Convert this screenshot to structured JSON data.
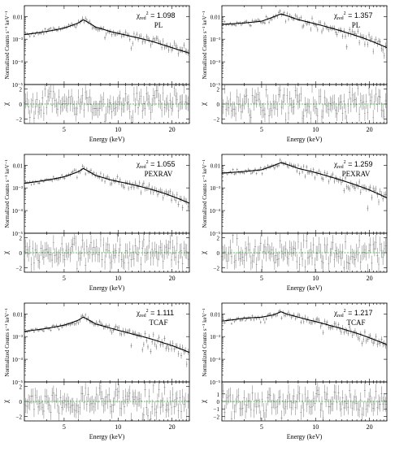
{
  "chart_data": [
    {
      "type": "scatter",
      "annotation": {
        "chi_label": "χ",
        "chi_sub": "red",
        "chi_sup": "2",
        "chi_value": "= 1.098",
        "model": "PL"
      },
      "top": {
        "ylabel": "Normalized Counts s⁻¹ keV⁻¹",
        "ylim": [
          1e-05,
          0.03
        ],
        "yscale": "log",
        "yticks": [
          "0.01",
          "10⁻³",
          "10⁻⁴",
          "10⁻⁵"
        ],
        "ytick_values": [
          0.01,
          0.001,
          0.0001,
          1e-05
        ]
      },
      "bottom": {
        "ylabel": "χ",
        "ylim": [
          -2.6,
          2.6
        ],
        "yticks": [
          "2",
          "0",
          "−2"
        ],
        "ytick_values": [
          2,
          0,
          -2
        ]
      },
      "x": {
        "label": "Energy (keV)",
        "range": [
          3,
          25
        ],
        "ticks": [
          "5",
          "10",
          "20"
        ],
        "tick_values": [
          5,
          10,
          20
        ]
      },
      "model_curve": {
        "x": [
          3,
          4,
          5,
          6,
          6.4,
          6.8,
          7.5,
          9,
          10,
          12,
          15,
          18,
          20,
          22,
          25
        ],
        "y": [
          0.0016,
          0.0022,
          0.0031,
          0.0052,
          0.0072,
          0.0055,
          0.0034,
          0.0022,
          0.0018,
          0.0013,
          0.00085,
          0.00055,
          0.00042,
          0.00033,
          0.00024
        ]
      },
      "residual_scatter": 1.0
    },
    {
      "type": "scatter",
      "annotation": {
        "chi_label": "χ",
        "chi_sub": "red",
        "chi_sup": "2",
        "chi_value": "= 1.357",
        "model": "PL"
      },
      "top": {
        "ylabel": "Normalized Counts s⁻¹ keV⁻¹",
        "ylim": [
          1e-05,
          0.03
        ],
        "yscale": "log",
        "yticks": [
          "0.01",
          "10⁻³",
          "10⁻⁴",
          "10⁻⁵"
        ],
        "ytick_values": [
          0.01,
          0.001,
          0.0001,
          1e-05
        ]
      },
      "bottom": {
        "ylabel": "χ",
        "ylim": [
          -2.6,
          2.6
        ],
        "yticks": [
          "2",
          "0",
          "−2"
        ],
        "ytick_values": [
          2,
          0,
          -2
        ]
      },
      "x": {
        "label": "Energy (keV)",
        "range": [
          3,
          25
        ],
        "ticks": [
          "5",
          "10",
          "20"
        ],
        "tick_values": [
          5,
          10,
          20
        ]
      },
      "model_curve": {
        "x": [
          3,
          4,
          5,
          5.8,
          6.4,
          7,
          8,
          9,
          10,
          12,
          15,
          18,
          20,
          22,
          25
        ],
        "y": [
          0.0045,
          0.0052,
          0.0062,
          0.0095,
          0.013,
          0.0105,
          0.0072,
          0.0058,
          0.0047,
          0.0032,
          0.0019,
          0.0012,
          0.00088,
          0.00065,
          0.00042
        ]
      },
      "residual_scatter": 1.2
    },
    {
      "type": "scatter",
      "annotation": {
        "chi_label": "χ",
        "chi_sub": "red",
        "chi_sup": "2",
        "chi_value": "= 1.055",
        "model": "PEXRAV"
      },
      "top": {
        "ylabel": "Normalized Counts s⁻¹ keV⁻¹",
        "ylim": [
          1e-05,
          0.03
        ],
        "yscale": "log",
        "yticks": [
          "0.01",
          "10⁻³",
          "10⁻⁴",
          "10⁻⁵"
        ],
        "ytick_values": [
          0.01,
          0.001,
          0.0001,
          1e-05
        ]
      },
      "bottom": {
        "ylabel": "χ",
        "ylim": [
          -2.6,
          2.6
        ],
        "yticks": [
          "2",
          "0",
          "−2"
        ],
        "ytick_values": [
          2,
          0,
          -2
        ]
      },
      "x": {
        "label": "Energy (keV)",
        "range": [
          3,
          25
        ],
        "ticks": [
          "5",
          "10",
          "20"
        ],
        "tick_values": [
          5,
          10,
          20
        ]
      },
      "model_curve": {
        "x": [
          3,
          4,
          5,
          6,
          6.4,
          6.8,
          7.5,
          9,
          10,
          12,
          15,
          18,
          20,
          22,
          25
        ],
        "y": [
          0.0016,
          0.0022,
          0.0031,
          0.0052,
          0.0072,
          0.0055,
          0.0035,
          0.0023,
          0.0019,
          0.0014,
          0.0009,
          0.00058,
          0.00043,
          0.00032,
          0.00021
        ]
      },
      "residual_scatter": 1.0
    },
    {
      "type": "scatter",
      "annotation": {
        "chi_label": "χ",
        "chi_sub": "red",
        "chi_sup": "2",
        "chi_value": "= 1.259",
        "model": "PEXRAV"
      },
      "top": {
        "ylabel": "Normalized Counts s⁻¹ keV⁻¹",
        "ylim": [
          1e-05,
          0.03
        ],
        "yscale": "log",
        "yticks": [
          "0.01",
          "10⁻³",
          "10⁻⁴",
          "10⁻⁵"
        ],
        "ytick_values": [
          0.01,
          0.001,
          0.0001,
          1e-05
        ]
      },
      "bottom": {
        "ylabel": "χ",
        "ylim": [
          -2.6,
          2.6
        ],
        "yticks": [
          "2",
          "0",
          "−2"
        ],
        "ytick_values": [
          2,
          0,
          -2
        ]
      },
      "x": {
        "label": "Energy (keV)",
        "range": [
          3,
          25
        ],
        "ticks": [
          "5",
          "10",
          "20"
        ],
        "tick_values": [
          5,
          10,
          20
        ]
      },
      "model_curve": {
        "x": [
          3,
          4,
          5,
          5.8,
          6.4,
          7,
          8,
          9,
          10,
          12,
          15,
          18,
          20,
          22,
          25
        ],
        "y": [
          0.0045,
          0.0053,
          0.0063,
          0.0095,
          0.013,
          0.0105,
          0.0072,
          0.0058,
          0.0047,
          0.0031,
          0.0018,
          0.0011,
          0.0008,
          0.00058,
          0.00036
        ]
      },
      "residual_scatter": 1.1
    },
    {
      "type": "scatter",
      "annotation": {
        "chi_label": "χ",
        "chi_sub": "red",
        "chi_sup": "2",
        "chi_value": "= 1.111",
        "model": "TCAF"
      },
      "top": {
        "ylabel": "Normalized Counts s⁻¹ keV⁻¹",
        "ylim": [
          1e-05,
          0.03
        ],
        "yscale": "log",
        "yticks": [
          "0.01",
          "10⁻³",
          "10⁻⁴",
          "10⁻⁵"
        ],
        "ytick_values": [
          0.01,
          0.001,
          0.0001,
          1e-05
        ]
      },
      "bottom": {
        "ylabel": "χ",
        "ylim": [
          -2.6,
          2.6
        ],
        "yticks": [
          "2",
          "0",
          "−2"
        ],
        "ytick_values": [
          2,
          0,
          -2
        ]
      },
      "x": {
        "label": "Energy (keV)",
        "range": [
          3,
          25
        ],
        "ticks": [
          "5",
          "10",
          "20"
        ],
        "tick_values": [
          5,
          10,
          20
        ]
      },
      "model_curve": {
        "x": [
          3,
          4,
          5,
          6,
          6.4,
          6.8,
          7.5,
          9,
          10,
          12,
          15,
          18,
          20,
          22,
          25
        ],
        "y": [
          0.0017,
          0.0023,
          0.0032,
          0.0053,
          0.0073,
          0.0056,
          0.0036,
          0.0024,
          0.0019,
          0.0013,
          0.00082,
          0.00052,
          0.0004,
          0.0003,
          0.0002
        ]
      },
      "residual_scatter": 1.0
    },
    {
      "type": "scatter",
      "annotation": {
        "chi_label": "χ",
        "chi_sub": "red",
        "chi_sup": "2",
        "chi_value": "= 1.217",
        "model": "TCAF"
      },
      "top": {
        "ylabel": "Normalized Counts s⁻¹ keV⁻¹",
        "ylim": [
          1e-05,
          0.03
        ],
        "yscale": "log",
        "yticks": [
          "0.01",
          "10⁻³",
          "10⁻⁴",
          "10⁻⁵"
        ],
        "ytick_values": [
          0.01,
          0.001,
          0.0001,
          1e-05
        ]
      },
      "bottom": {
        "ylabel": "χ",
        "ylim": [
          -2.6,
          2.6
        ],
        "yticks": [
          "1",
          "0",
          "−1",
          "−2"
        ],
        "ytick_values": [
          1,
          0,
          -1,
          -2
        ]
      },
      "x": {
        "label": "Energy (keV)",
        "range": [
          3,
          25
        ],
        "ticks": [
          "5",
          "10",
          "20"
        ],
        "tick_values": [
          5,
          10,
          20
        ]
      },
      "model_curve": {
        "x": [
          3,
          4,
          5,
          5.8,
          6.4,
          7,
          8,
          9,
          10,
          12,
          15,
          18,
          20,
          22,
          25
        ],
        "y": [
          0.0048,
          0.0065,
          0.0072,
          0.009,
          0.0125,
          0.0095,
          0.0072,
          0.0056,
          0.0046,
          0.0031,
          0.0019,
          0.0012,
          0.00088,
          0.00066,
          0.00044
        ]
      },
      "residual_scatter": 1.1
    }
  ],
  "colors": {
    "data": "#555555",
    "model": "#000000",
    "zero_line": "#22aa22",
    "axis": "#000000"
  }
}
